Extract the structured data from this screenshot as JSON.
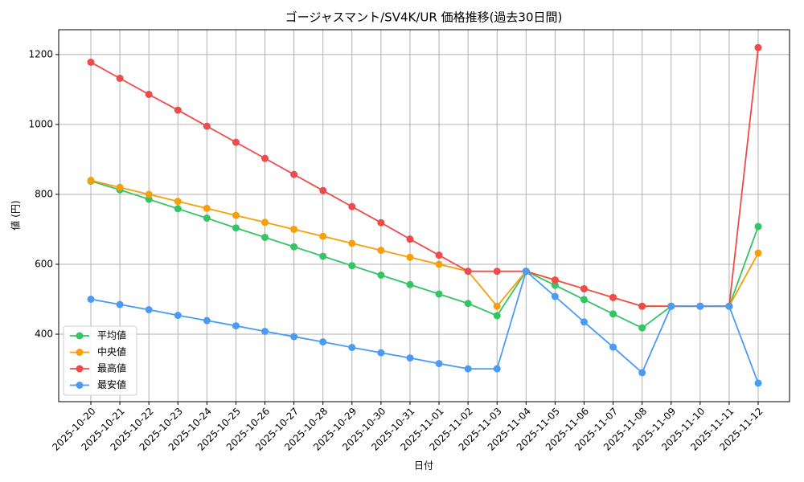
{
  "chart_data": {
    "type": "line",
    "title": "ゴージャスマント/SV4K/UR 価格推移(過去30日間)",
    "x_label": "日付",
    "y_label": "値 (円)",
    "categories": [
      "2025-10-20",
      "2025-10-21",
      "2025-10-22",
      "2025-10-23",
      "2025-10-24",
      "2025-10-25",
      "2025-10-26",
      "2025-10-27",
      "2025-10-28",
      "2025-10-29",
      "2025-10-30",
      "2025-10-31",
      "2025-11-01",
      "2025-11-02",
      "2025-11-03",
      "2025-11-04",
      "2025-11-05",
      "2025-11-06",
      "2025-11-07",
      "2025-11-08",
      "2025-11-09",
      "2025-11-10",
      "2025-11-11",
      "2025-11-12"
    ],
    "series": [
      {
        "name": "平均値",
        "color": "#33c463",
        "values": [
          838,
          813,
          786,
          759,
          732,
          704,
          677,
          650,
          623,
          596,
          569,
          542,
          515,
          488,
          453,
          580,
          540,
          499,
          458,
          418,
          480,
          480,
          480,
          708
        ]
      },
      {
        "name": "中央値",
        "color": "#f5a00a",
        "values": [
          840,
          820,
          800,
          780,
          760,
          740,
          720,
          700,
          680,
          660,
          640,
          620,
          600,
          580,
          480,
          580,
          555,
          530,
          505,
          480,
          480,
          480,
          480,
          632
        ]
      },
      {
        "name": "最高値",
        "color": "#f04a4a",
        "values": [
          1178,
          1132,
          1086,
          1041,
          995,
          949,
          903,
          857,
          811,
          765,
          719,
          672,
          626,
          580,
          580,
          580,
          555,
          530,
          505,
          480,
          480,
          480,
          480,
          1220
        ]
      },
      {
        "name": "最安値",
        "color": "#4b9bf5",
        "values": [
          500,
          485,
          470,
          454,
          439,
          424,
          408,
          393,
          378,
          362,
          347,
          332,
          316,
          301,
          301,
          580,
          508,
          435,
          363,
          290,
          480,
          480,
          480,
          260
        ]
      }
    ],
    "ylim": [
      207,
      1271
    ],
    "yticks": [
      400,
      600,
      800,
      1000,
      1200
    ],
    "grid": true,
    "legend": "lower left"
  }
}
